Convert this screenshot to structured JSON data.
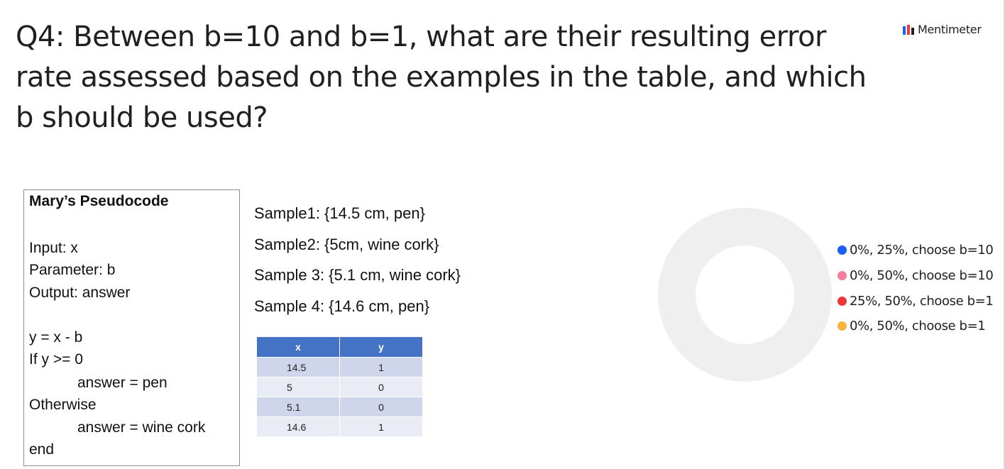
{
  "question": {
    "text": "Q4: Between b=10 and b=1, what are their resulting error rate assessed based on the examples in the table, and which b should be used?"
  },
  "brand": {
    "label": "Mentimeter",
    "icon": "mentimeter-logo-icon"
  },
  "pseudocode": {
    "title": "Mary’s Pseudocode",
    "input": "Input: x",
    "parameter": "Parameter: b",
    "output": "Output: answer",
    "assign": "y = x - b",
    "condition": "If y >= 0",
    "then_answer": "answer = pen",
    "otherwise": "Otherwise",
    "else_answer": "answer = wine cork",
    "end": "end"
  },
  "samples": [
    "Sample1: {14.5 cm, pen}",
    "Sample2: {5cm, wine cork}",
    "Sample 3: {5.1 cm, wine cork}",
    "Sample 4: {14.6 cm, pen}"
  ],
  "table": {
    "headers": [
      "x",
      "y"
    ],
    "rows": [
      [
        "14.5",
        "1"
      ],
      [
        "5",
        "0"
      ],
      [
        "5.1",
        "0"
      ],
      [
        "14.6",
        "1"
      ]
    ]
  },
  "donut": {
    "ring_color": "#efefef",
    "votes": 0
  },
  "legend": [
    {
      "label": "0%, 25%, choose b=10",
      "color": "#1b5ff5"
    },
    {
      "label": "0%, 50%, choose b=10",
      "color": "#f57ea0"
    },
    {
      "label": "25%, 50%, choose b=1",
      "color": "#f0363b"
    },
    {
      "label": "0%, 50%, choose b=1",
      "color": "#f9b33b"
    }
  ]
}
